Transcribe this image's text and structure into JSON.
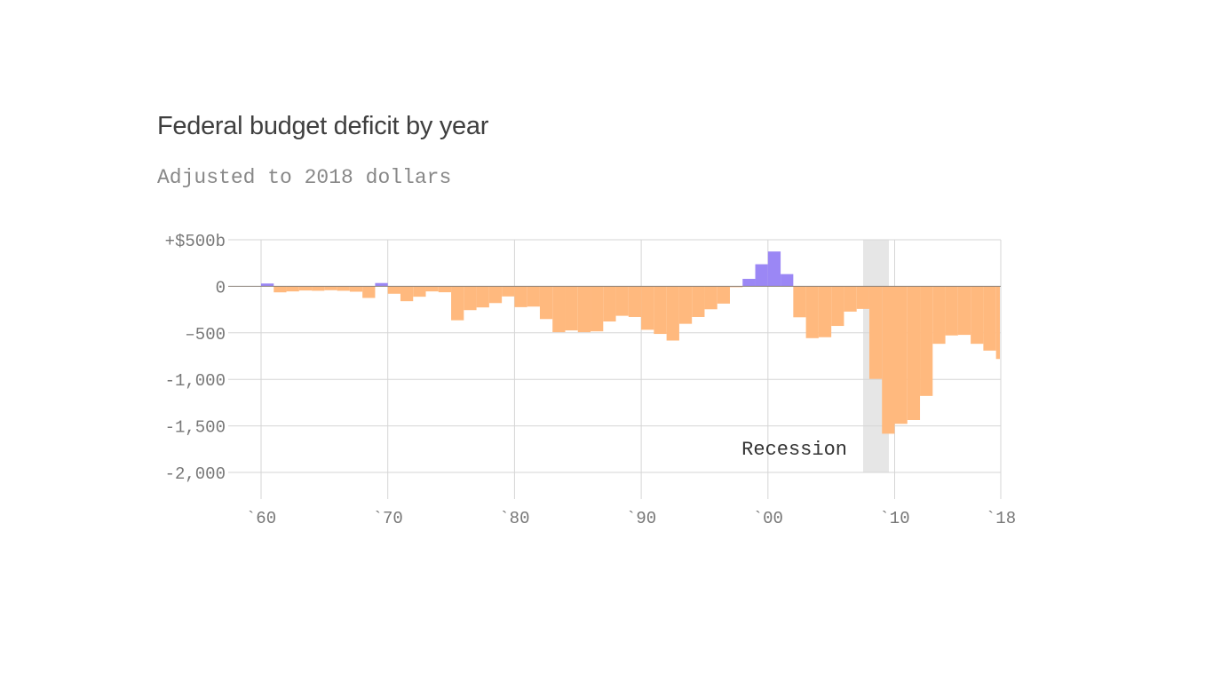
{
  "title": "Federal budget deficit by year",
  "subtitle": "Adjusted to 2018 dollars",
  "chart_data": {
    "type": "bar",
    "xlim": [
      1960,
      2018
    ],
    "ylim": [
      -2000,
      500
    ],
    "grid": true,
    "colors": {
      "surplus": "#9b87f5",
      "deficit": "#ffb97e",
      "recession": "#e6e6e6"
    },
    "y_ticks": [
      {
        "value": 500,
        "label": "+$500b"
      },
      {
        "value": 0,
        "label": "0"
      },
      {
        "value": -500,
        "label": "–500"
      },
      {
        "value": -1000,
        "label": "-1,000"
      },
      {
        "value": -1500,
        "label": "-1,500"
      },
      {
        "value": -2000,
        "label": "-2,000"
      }
    ],
    "x_ticks": [
      {
        "value": 1960,
        "label": "`60"
      },
      {
        "value": 1970,
        "label": "`70"
      },
      {
        "value": 1980,
        "label": "`80"
      },
      {
        "value": 1990,
        "label": "`90"
      },
      {
        "value": 2000,
        "label": "`00"
      },
      {
        "value": 2010,
        "label": "`10"
      },
      {
        "value": 2018,
        "label": "`18"
      }
    ],
    "annotation": {
      "label": "Recession",
      "start": 2008,
      "end": 2010
    },
    "x": [
      1960,
      1961,
      1962,
      1963,
      1964,
      1965,
      1966,
      1967,
      1968,
      1969,
      1970,
      1971,
      1972,
      1973,
      1974,
      1975,
      1976,
      1977,
      1978,
      1979,
      1980,
      1981,
      1982,
      1983,
      1984,
      1985,
      1986,
      1987,
      1988,
      1989,
      1990,
      1991,
      1992,
      1993,
      1994,
      1995,
      1996,
      1997,
      1998,
      1999,
      2000,
      2001,
      2002,
      2003,
      2004,
      2005,
      2006,
      2007,
      2008,
      2009,
      2010,
      2011,
      2012,
      2013,
      2014,
      2015,
      2016,
      2017,
      2018
    ],
    "values": [
      30,
      -65,
      -55,
      -45,
      -48,
      -42,
      -48,
      -58,
      -125,
      35,
      -80,
      -160,
      -112,
      -55,
      -64,
      -365,
      -256,
      -227,
      -180,
      -109,
      -224,
      -218,
      -352,
      -493,
      -474,
      -493,
      -484,
      -378,
      -317,
      -330,
      -467,
      -512,
      -583,
      -403,
      -330,
      -247,
      -186,
      -8,
      80,
      237,
      374,
      131,
      -333,
      -557,
      -547,
      -426,
      -272,
      -243,
      -995,
      -1584,
      -1478,
      -1437,
      -1178,
      -618,
      -528,
      -522,
      -618,
      -691,
      -781
    ]
  }
}
